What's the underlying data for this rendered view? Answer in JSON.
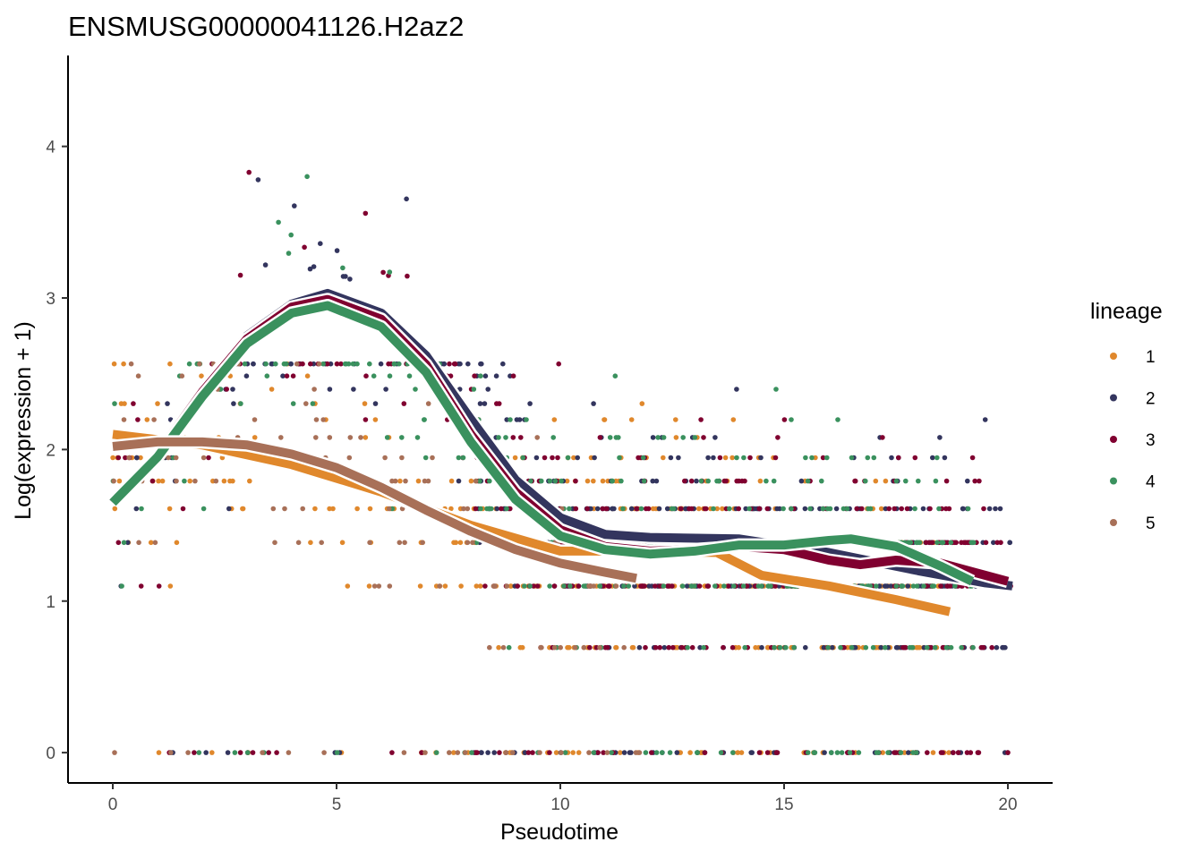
{
  "chart_data": {
    "type": "scatter",
    "title": "ENSMUSG00000041126.H2az2",
    "xlabel": "Pseudotime",
    "ylabel": "Log(expression + 1)",
    "xlim": [
      -1,
      21
    ],
    "ylim": [
      -0.2,
      4.6
    ],
    "x_ticks": [
      0,
      5,
      10,
      15,
      20
    ],
    "y_ticks": [
      0,
      1,
      2,
      3,
      4
    ],
    "grid": false,
    "legend": {
      "title": "lineage",
      "position": "right"
    },
    "series": [
      {
        "name": "1",
        "color": "#E0882C",
        "smooth": [
          [
            0,
            2.1
          ],
          [
            2,
            2.03
          ],
          [
            4,
            1.9
          ],
          [
            6,
            1.72
          ],
          [
            8,
            1.5
          ],
          [
            10,
            1.33
          ],
          [
            12,
            1.33
          ],
          [
            13.5,
            1.32
          ],
          [
            14.5,
            1.17
          ],
          [
            16,
            1.1
          ],
          [
            17.5,
            1.01
          ],
          [
            18.7,
            0.93
          ]
        ]
      },
      {
        "name": "2",
        "color": "#33355E",
        "smooth": [
          [
            0,
            1.65
          ],
          [
            1,
            1.98
          ],
          [
            2,
            2.4
          ],
          [
            3,
            2.75
          ],
          [
            4,
            2.96
          ],
          [
            4.8,
            3.03
          ],
          [
            6,
            2.9
          ],
          [
            7,
            2.62
          ],
          [
            8,
            2.2
          ],
          [
            9,
            1.8
          ],
          [
            10,
            1.55
          ],
          [
            11,
            1.44
          ],
          [
            12,
            1.42
          ],
          [
            14,
            1.41
          ],
          [
            16,
            1.32
          ],
          [
            18,
            1.2
          ],
          [
            19.5,
            1.12
          ],
          [
            20.1,
            1.1
          ]
        ]
      },
      {
        "name": "3",
        "color": "#800030",
        "smooth": [
          [
            0,
            1.65
          ],
          [
            1,
            1.97
          ],
          [
            2,
            2.38
          ],
          [
            3,
            2.73
          ],
          [
            4,
            2.94
          ],
          [
            4.8,
            2.99
          ],
          [
            6,
            2.86
          ],
          [
            7,
            2.56
          ],
          [
            8,
            2.1
          ],
          [
            9,
            1.72
          ],
          [
            10,
            1.47
          ],
          [
            11,
            1.36
          ],
          [
            12,
            1.33
          ],
          [
            13,
            1.34
          ],
          [
            14,
            1.36
          ],
          [
            15,
            1.34
          ],
          [
            16,
            1.27
          ],
          [
            16.7,
            1.24
          ],
          [
            17.5,
            1.27
          ],
          [
            18.5,
            1.25
          ],
          [
            19.5,
            1.17
          ],
          [
            20,
            1.13
          ]
        ]
      },
      {
        "name": "4",
        "color": "#3A915E",
        "smooth": [
          [
            0,
            1.65
          ],
          [
            1,
            1.95
          ],
          [
            2,
            2.35
          ],
          [
            3,
            2.7
          ],
          [
            4,
            2.9
          ],
          [
            4.8,
            2.95
          ],
          [
            6,
            2.81
          ],
          [
            7,
            2.51
          ],
          [
            8,
            2.05
          ],
          [
            9,
            1.67
          ],
          [
            10,
            1.43
          ],
          [
            11,
            1.34
          ],
          [
            12,
            1.31
          ],
          [
            13,
            1.33
          ],
          [
            14,
            1.37
          ],
          [
            15,
            1.37
          ],
          [
            16,
            1.4
          ],
          [
            16.5,
            1.41
          ],
          [
            17.5,
            1.36
          ],
          [
            18.5,
            1.23
          ],
          [
            19.2,
            1.13
          ]
        ]
      },
      {
        "name": "5",
        "color": "#A87058",
        "smooth": [
          [
            0,
            2.02
          ],
          [
            1,
            2.05
          ],
          [
            2,
            2.05
          ],
          [
            3,
            2.03
          ],
          [
            4,
            1.97
          ],
          [
            5,
            1.88
          ],
          [
            6,
            1.75
          ],
          [
            7,
            1.6
          ],
          [
            8,
            1.46
          ],
          [
            9,
            1.34
          ],
          [
            10,
            1.25
          ],
          [
            11,
            1.19
          ],
          [
            11.7,
            1.15
          ]
        ]
      }
    ]
  }
}
